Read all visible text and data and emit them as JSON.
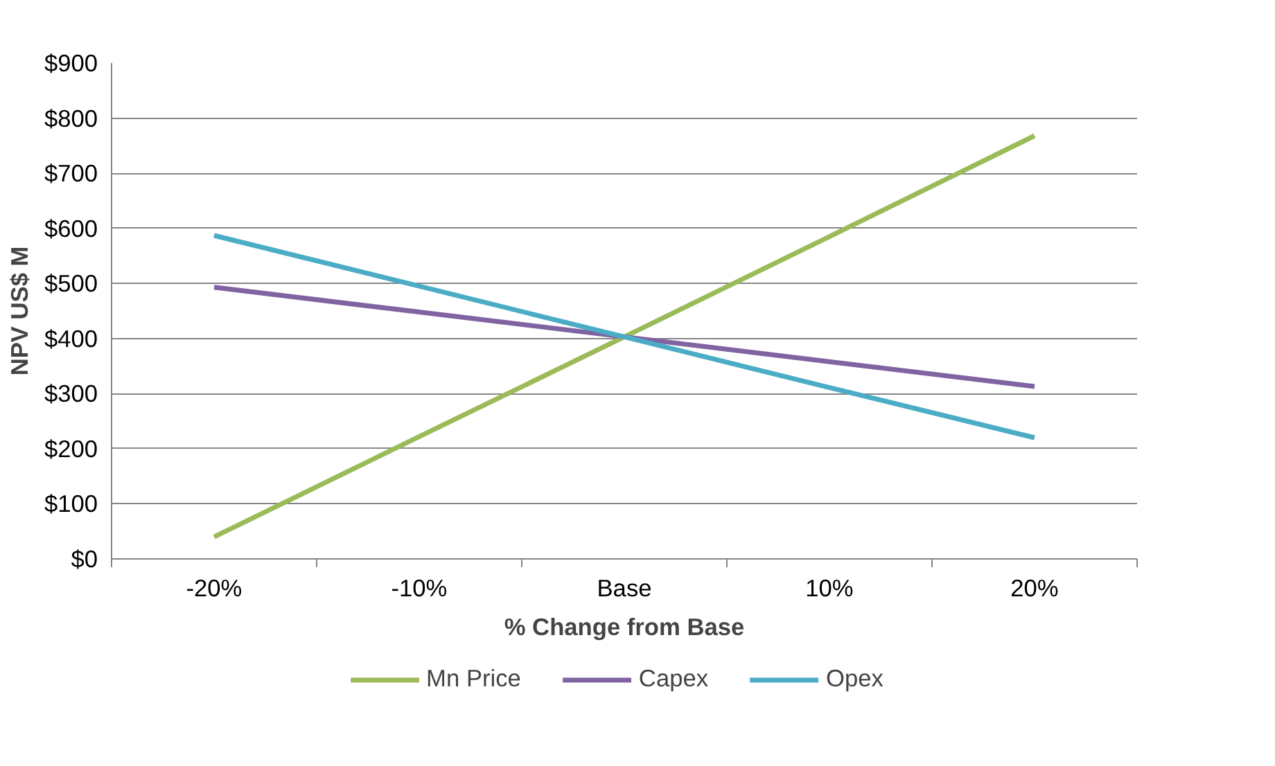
{
  "chart_data": {
    "type": "line",
    "xlabel": "% Change from Base",
    "ylabel": "NPV US$ M",
    "categories": [
      "-20%",
      "-10%",
      "Base",
      "10%",
      "20%"
    ],
    "series": [
      {
        "name": "Mn Price",
        "color": "#9bbb59",
        "values": [
          40,
          222,
          403,
          585,
          768
        ]
      },
      {
        "name": "Capex",
        "color": "#8064a2",
        "values": [
          493,
          448,
          403,
          358,
          313
        ]
      },
      {
        "name": "Opex",
        "color": "#4bacc6",
        "values": [
          587,
          495,
          403,
          311,
          220
        ]
      }
    ],
    "ylim": [
      0,
      900
    ],
    "yticks": [
      {
        "value": 0,
        "label": "$0"
      },
      {
        "value": 100,
        "label": "$100"
      },
      {
        "value": 200,
        "label": "$200"
      },
      {
        "value": 300,
        "label": "$300"
      },
      {
        "value": 400,
        "label": "$400"
      },
      {
        "value": 500,
        "label": "$500"
      },
      {
        "value": 600,
        "label": "$600"
      },
      {
        "value": 700,
        "label": "$700"
      },
      {
        "value": 800,
        "label": "$800"
      },
      {
        "value": 900,
        "label": "$900"
      }
    ],
    "grid": "y",
    "legend": "bottom",
    "marker": "none",
    "line_style": "solid"
  }
}
